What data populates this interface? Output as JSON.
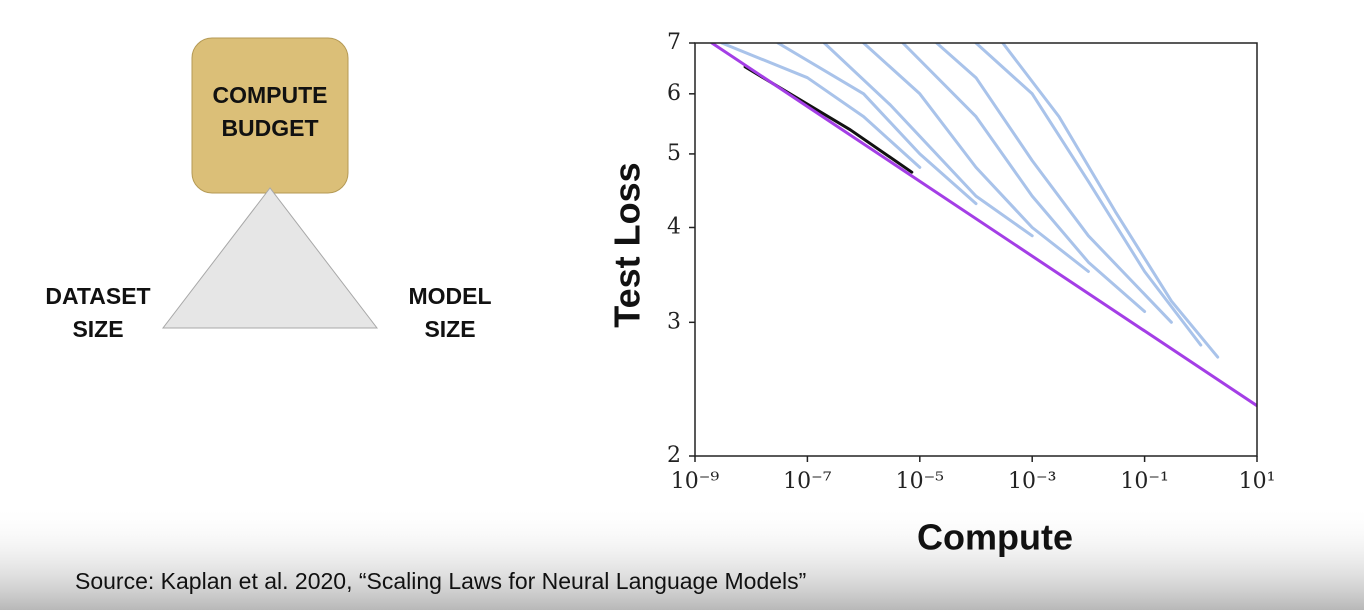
{
  "diagram": {
    "compute_budget": [
      "COMPUTE",
      "BUDGET"
    ],
    "dataset_size": [
      "DATASET",
      "SIZE"
    ],
    "model_size": [
      "MODEL",
      "SIZE"
    ]
  },
  "chart_data": {
    "type": "line",
    "xlabel": "Compute",
    "ylabel": "Test Loss",
    "xscale": "log",
    "yscale": "log",
    "xlim": [
      1e-09,
      10
    ],
    "ylim": [
      2,
      7
    ],
    "xticks": [
      {
        "value": 1e-09,
        "label": "10⁻⁹"
      },
      {
        "value": 1e-07,
        "label": "10⁻⁷"
      },
      {
        "value": 1e-05,
        "label": "10⁻⁵"
      },
      {
        "value": 0.001,
        "label": "10⁻³"
      },
      {
        "value": 0.1,
        "label": "10⁻¹"
      },
      {
        "value": 10,
        "label": "10¹"
      }
    ],
    "yticks": [
      2,
      3,
      4,
      5,
      6,
      7
    ],
    "series": [
      {
        "color": "#a9c3ea",
        "x": [
          3e-09,
          1e-07,
          1e-06,
          1e-05
        ],
        "values": [
          7,
          6.3,
          5.6,
          4.8
        ]
      },
      {
        "color": "#a9c3ea",
        "x": [
          3e-08,
          1e-06,
          1e-05,
          0.0001
        ],
        "values": [
          7,
          6.0,
          5.0,
          4.3
        ]
      },
      {
        "color": "#a9c3ea",
        "x": [
          2e-07,
          3e-06,
          0.0001,
          0.001
        ],
        "values": [
          7,
          5.8,
          4.4,
          3.9
        ]
      },
      {
        "color": "#a9c3ea",
        "x": [
          1e-06,
          1e-05,
          0.0001,
          0.001,
          0.01
        ],
        "values": [
          7,
          6.0,
          4.8,
          4.0,
          3.5
        ]
      },
      {
        "color": "#a9c3ea",
        "x": [
          5e-06,
          0.0001,
          0.001,
          0.01,
          0.1
        ],
        "values": [
          7,
          5.6,
          4.4,
          3.6,
          3.1
        ]
      },
      {
        "color": "#a9c3ea",
        "x": [
          2e-05,
          0.0001,
          0.001,
          0.01,
          0.3
        ],
        "values": [
          7,
          6.3,
          4.9,
          3.9,
          3.0
        ]
      },
      {
        "color": "#a9c3ea",
        "x": [
          0.0001,
          0.001,
          0.01,
          0.1,
          1
        ],
        "values": [
          7,
          6.0,
          4.6,
          3.5,
          2.8
        ]
      },
      {
        "color": "#a9c3ea",
        "x": [
          0.0003,
          0.003,
          0.03,
          0.3,
          2
        ],
        "values": [
          7,
          5.6,
          4.2,
          3.2,
          2.7
        ]
      },
      {
        "color": "#111111",
        "x": [
          7.8e-09,
          5.8e-07,
          7.2e-06
        ],
        "values": [
          6.51,
          5.38,
          4.73
        ]
      },
      {
        "color": "#a43ee6",
        "x": [
          2e-09,
          10
        ],
        "values": [
          7,
          2.33
        ]
      }
    ]
  },
  "source": "Source: Kaplan et al. 2020, “Scaling Laws for Neural Language Models”"
}
